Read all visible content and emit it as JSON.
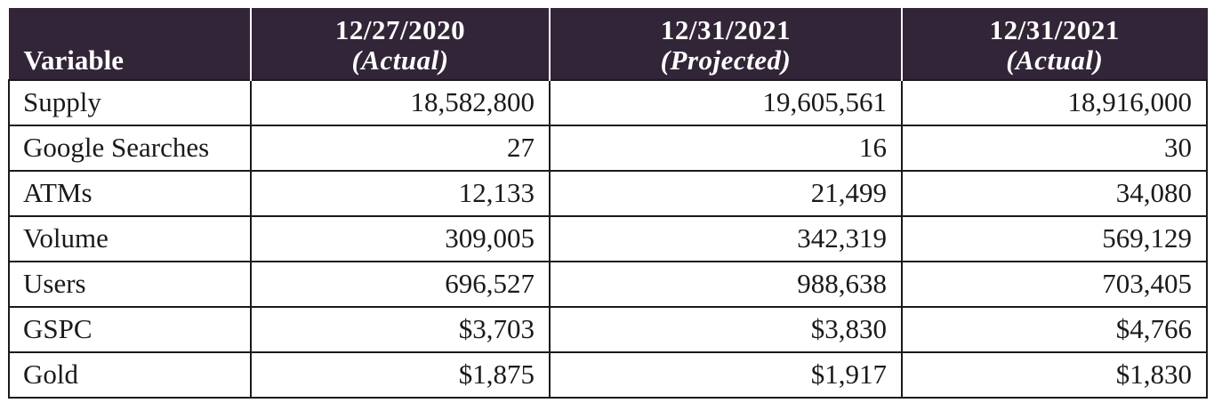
{
  "table": {
    "header": {
      "variable_label": "Variable",
      "columns": [
        {
          "date": "12/27/2020",
          "qualifier": "(Actual)"
        },
        {
          "date": "12/31/2021",
          "qualifier": "(Projected)"
        },
        {
          "date": "12/31/2021",
          "qualifier": "(Actual)"
        }
      ]
    },
    "rows": [
      {
        "variable": "Supply",
        "values": [
          "18,582,800",
          "19,605,561",
          "18,916,000"
        ]
      },
      {
        "variable": "Google Searches",
        "values": [
          "27",
          "16",
          "30"
        ]
      },
      {
        "variable": "ATMs",
        "values": [
          "12,133",
          "21,499",
          "34,080"
        ]
      },
      {
        "variable": "Volume",
        "values": [
          "309,005",
          "342,319",
          "569,129"
        ]
      },
      {
        "variable": "Users",
        "values": [
          "696,527",
          "988,638",
          "703,405"
        ]
      },
      {
        "variable": "GSPC",
        "values": [
          "$3,703",
          "$3,830",
          "$4,766"
        ]
      },
      {
        "variable": "Gold",
        "values": [
          "$1,875",
          "$1,917",
          "$1,830"
        ]
      }
    ]
  },
  "colors": {
    "header_background": "#322538",
    "header_text": "#ffffff",
    "border": "#1a1a1a"
  }
}
